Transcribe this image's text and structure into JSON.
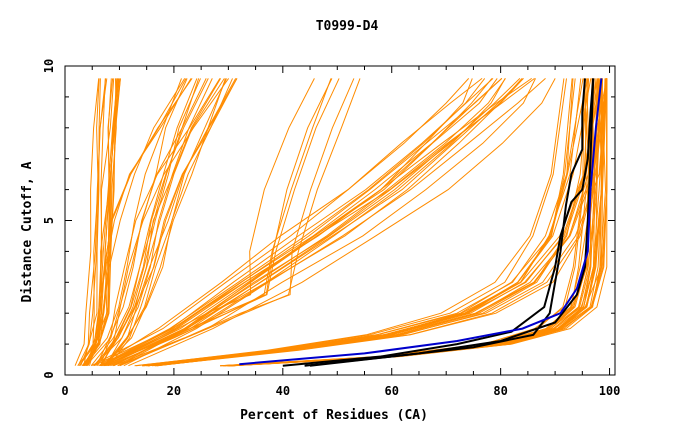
{
  "chart_data": {
    "type": "line",
    "title": "T0999-D4",
    "xlabel": "Percent of Residues (CA)",
    "ylabel": "Distance Cutoff, A",
    "xlim": [
      0,
      101
    ],
    "ylim": [
      0,
      10
    ],
    "x_ticks": [
      0,
      20,
      40,
      60,
      80,
      100
    ],
    "y_ticks": [
      0,
      5,
      10
    ],
    "x_tick_labels": [
      "0",
      "20",
      "40",
      "60",
      "80",
      "100"
    ],
    "y_tick_labels": [
      "0",
      "5",
      "10"
    ],
    "grid": false,
    "legend": "none",
    "colors": {
      "orange": "#ff8c00",
      "black": "#000000",
      "blue": "#0000cc"
    },
    "series_groups": [
      {
        "name": "steep-low",
        "color": "#ff8c00",
        "count": 18,
        "base": [
          [
            3,
            0.3
          ],
          [
            5,
            1.0
          ],
          [
            6,
            2.0
          ],
          [
            6.5,
            4.0
          ],
          [
            7,
            6.0
          ],
          [
            7.5,
            8.0
          ],
          [
            8,
            9.6
          ]
        ],
        "x_spread": 4.5
      },
      {
        "name": "diagonal-left",
        "color": "#ff8c00",
        "count": 22,
        "base": [
          [
            6,
            0.3
          ],
          [
            9,
            1.2
          ],
          [
            11,
            2.2
          ],
          [
            13,
            3.5
          ],
          [
            15,
            5.0
          ],
          [
            18,
            6.5
          ],
          [
            22,
            8.0
          ],
          [
            27,
            9.6
          ]
        ],
        "x_spread": 12
      },
      {
        "name": "diagonal-middle",
        "color": "#ff8c00",
        "count": 6,
        "base": [
          [
            8,
            0.3
          ],
          [
            20,
            1.2
          ],
          [
            30,
            2.0
          ],
          [
            38,
            2.6
          ],
          [
            39,
            4.0
          ],
          [
            42,
            6.0
          ],
          [
            46,
            8.0
          ],
          [
            50,
            9.6
          ]
        ],
        "x_spread": 10
      },
      {
        "name": "fan-low",
        "color": "#ff8c00",
        "count": 20,
        "base": [
          [
            8,
            0.3
          ],
          [
            22,
            1.5
          ],
          [
            35,
            3.0
          ],
          [
            48,
            4.5
          ],
          [
            60,
            6.0
          ],
          [
            70,
            7.5
          ],
          [
            78,
            8.8
          ],
          [
            82,
            9.6
          ]
        ],
        "x_spread": 16
      },
      {
        "name": "fan-high",
        "color": "#ff8c00",
        "count": 20,
        "base": [
          [
            15,
            0.3
          ],
          [
            40,
            0.8
          ],
          [
            60,
            1.3
          ],
          [
            75,
            2.0
          ],
          [
            85,
            3.0
          ],
          [
            91,
            4.5
          ],
          [
            94,
            6.5
          ],
          [
            96,
            9.6
          ]
        ],
        "x_spread": 10
      },
      {
        "name": "right-cluster",
        "color": "#ff8c00",
        "count": 30,
        "base": [
          [
            30,
            0.3
          ],
          [
            60,
            0.6
          ],
          [
            80,
            1.0
          ],
          [
            90,
            1.5
          ],
          [
            95,
            2.2
          ],
          [
            97,
            3.5
          ],
          [
            98,
            6.0
          ],
          [
            98.5,
            9.6
          ]
        ],
        "x_spread": 6
      }
    ],
    "highlight_series": [
      {
        "name": "black-1",
        "color": "#000000",
        "points": [
          [
            44,
            0.3
          ],
          [
            60,
            0.6
          ],
          [
            75,
            0.9
          ],
          [
            86,
            1.3
          ],
          [
            89,
            2.0
          ],
          [
            90,
            3.0
          ],
          [
            91,
            4.0
          ],
          [
            92,
            5.5
          ],
          [
            93,
            6.5
          ],
          [
            95,
            7.3
          ],
          [
            95,
            8.5
          ],
          [
            95.5,
            9.6
          ]
        ]
      },
      {
        "name": "black-2",
        "color": "#000000",
        "points": [
          [
            40,
            0.3
          ],
          [
            58,
            0.6
          ],
          [
            72,
            1.0
          ],
          [
            82,
            1.4
          ],
          [
            88,
            2.2
          ],
          [
            90,
            3.5
          ],
          [
            91,
            4.5
          ],
          [
            93,
            5.6
          ],
          [
            95,
            6.0
          ],
          [
            96,
            7.0
          ],
          [
            96.5,
            8.5
          ],
          [
            97,
            9.6
          ]
        ]
      },
      {
        "name": "black-3",
        "color": "#000000",
        "points": [
          [
            45,
            0.3
          ],
          [
            65,
            0.7
          ],
          [
            80,
            1.1
          ],
          [
            90,
            1.7
          ],
          [
            94,
            2.6
          ],
          [
            95.5,
            3.5
          ],
          [
            96,
            5.0
          ],
          [
            96.5,
            7.0
          ],
          [
            97,
            9.6
          ]
        ]
      },
      {
        "name": "blue-1",
        "color": "#0000cc",
        "points": [
          [
            32,
            0.35
          ],
          [
            55,
            0.7
          ],
          [
            72,
            1.1
          ],
          [
            84,
            1.5
          ],
          [
            91,
            2.0
          ],
          [
            94,
            2.8
          ],
          [
            96,
            4.0
          ],
          [
            96.5,
            6.0
          ],
          [
            97.5,
            8.0
          ],
          [
            98.5,
            9.6
          ]
        ]
      }
    ]
  }
}
